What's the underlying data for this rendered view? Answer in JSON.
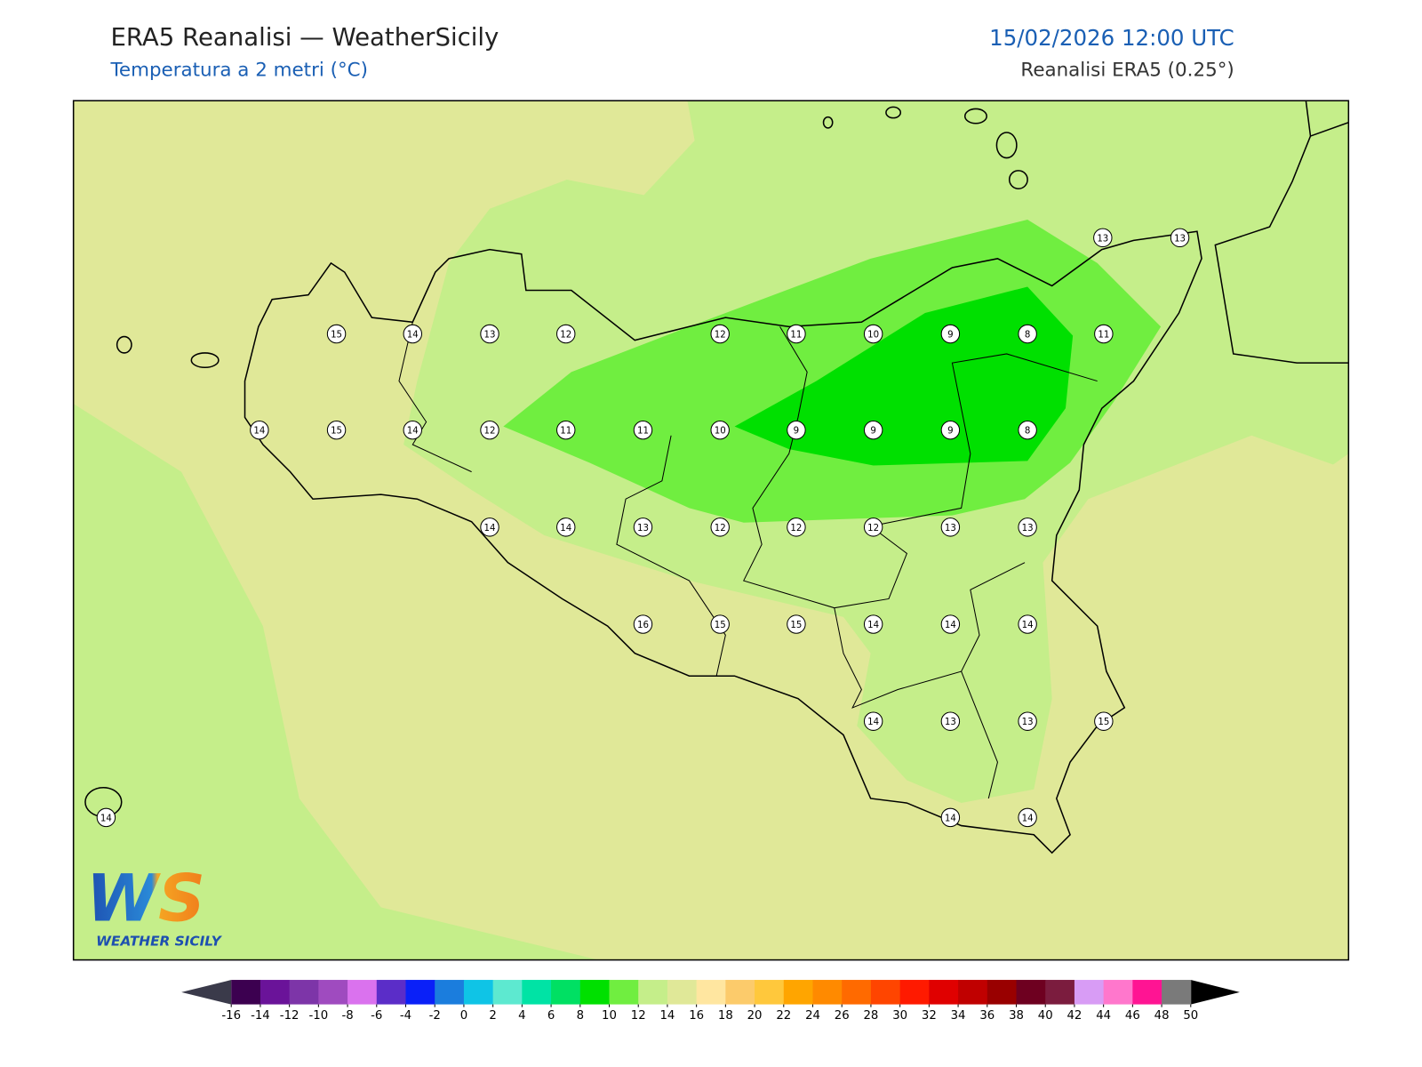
{
  "header": {
    "title": "ERA5 Reanalisi — WeatherSicily",
    "subtitle": "Temperatura a 2 metri (°C)",
    "datetime": "15/02/2026 12:00 UTC",
    "source": "Reanalisi ERA5 (0.25°)"
  },
  "stations": {
    "values": [
      13,
      13,
      15,
      14,
      13,
      12,
      12,
      11,
      10,
      9,
      8,
      11,
      14,
      15,
      14,
      12,
      11,
      11,
      10,
      9,
      9,
      9,
      8,
      14,
      14,
      13,
      12,
      12,
      12,
      13,
      13,
      16,
      15,
      15,
      14,
      14,
      14,
      14,
      13,
      13,
      15,
      14,
      14,
      14
    ]
  },
  "colorbar": {
    "ticks": [
      -16,
      -14,
      -12,
      -10,
      -8,
      -6,
      -4,
      -2,
      0,
      2,
      4,
      6,
      8,
      10,
      12,
      14,
      16,
      18,
      20,
      22,
      24,
      26,
      28,
      30,
      32,
      34,
      36,
      38,
      40,
      42,
      44,
      46,
      48,
      50
    ],
    "colors": [
      "#3c0050",
      "#6a1399",
      "#7d35a8",
      "#9f4bbf",
      "#da72ee",
      "#5b2dc8",
      "#0a20f8",
      "#1b7ddd",
      "#0fc4e6",
      "#5de9d0",
      "#00e3a5",
      "#00e063",
      "#00e000",
      "#70ee40",
      "#c5ee8a",
      "#e0e898",
      "#ffe6a0",
      "#fccb6b",
      "#ffc83c",
      "#ffa500",
      "#ff8a00",
      "#ff6a00",
      "#ff4500",
      "#ff1a00",
      "#e00000",
      "#c00000",
      "#990000",
      "#6e0020",
      "#7b1c3e",
      "#d89cf5",
      "#ff77cc",
      "#ff1493",
      "#7a7a7a",
      "#3a3a3a"
    ],
    "under_color": "#3a3a4a",
    "over_color": "#000000"
  },
  "logo": {
    "mark": "WS",
    "name": "WEATHER SICILY"
  }
}
